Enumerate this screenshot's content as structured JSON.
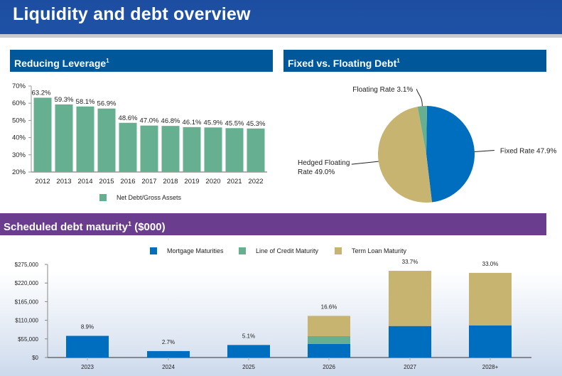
{
  "header": {
    "title": "Liquidity and debt overview"
  },
  "sections": {
    "leverage": {
      "title": "Reducing Leverage",
      "footnote": "1"
    },
    "fixed_floating": {
      "title": "Fixed vs. Floating Debt",
      "footnote": "1"
    },
    "maturity": {
      "title": "Scheduled debt maturity",
      "footnote": "1",
      "unit": "($000)"
    }
  },
  "colors": {
    "banner_blue": "#1E4FA3",
    "section_blue": "#00589A",
    "purple": "#6A3D8F",
    "green": "#66B091",
    "blue": "#006EBE",
    "tan": "#C6B470"
  },
  "chart_data": [
    {
      "id": "leverage",
      "type": "bar",
      "title": "Reducing Leverage",
      "categories": [
        "2012",
        "2013",
        "2014",
        "2015",
        "2016",
        "2017",
        "2018",
        "2019",
        "2020",
        "2021",
        "2022"
      ],
      "values": [
        63.2,
        59.3,
        58.1,
        56.9,
        48.6,
        47.0,
        46.8,
        46.1,
        45.9,
        45.5,
        45.3
      ],
      "data_labels": [
        "63.2%",
        "59.3%",
        "58.1%",
        "56.9%",
        "48.6%",
        "47.0%",
        "46.8%",
        "46.1%",
        "45.9%",
        "45.5%",
        "45.3%"
      ],
      "yticks": [
        "20%",
        "30%",
        "40%",
        "50%",
        "60%",
        "70%"
      ],
      "ylim": [
        20,
        70
      ],
      "xlabel": "",
      "ylabel": "",
      "legend": [
        {
          "name": "Net Debt/Gross Assets",
          "color": "#66B091"
        }
      ],
      "legend_position": "bottom",
      "grid": false
    },
    {
      "id": "fixed_floating",
      "type": "pie",
      "title": "Fixed vs. Floating Debt",
      "slices": [
        {
          "name": "Fixed Rate",
          "value": 47.9,
          "label": "Fixed Rate 47.9%",
          "color": "#006EBE"
        },
        {
          "name": "Hedged Floating Rate",
          "value": 49.0,
          "label_line1": "Hedged Floating",
          "label_line2": "Rate 49.0%",
          "color": "#C6B470"
        },
        {
          "name": "Floating Rate",
          "value": 3.1,
          "label": "Floating Rate 3.1%",
          "color": "#66B091"
        }
      ]
    },
    {
      "id": "maturity",
      "type": "bar",
      "stacked": true,
      "title": "Scheduled debt maturity ($000)",
      "categories": [
        "2023",
        "2024",
        "2025",
        "2026",
        "2027",
        "2028+"
      ],
      "series": [
        {
          "name": "Mortgage Maturities",
          "color": "#006EBE",
          "values": [
            64000,
            19000,
            37000,
            40000,
            93000,
            95000
          ]
        },
        {
          "name": "Line of Credit Maturity",
          "color": "#66B091",
          "values": [
            0,
            0,
            0,
            23000,
            0,
            0
          ]
        },
        {
          "name": "Term Loan Maturity",
          "color": "#C6B470",
          "values": [
            0,
            0,
            0,
            60000,
            163000,
            155000
          ]
        }
      ],
      "data_labels": [
        "8.9%",
        "2.7%",
        "5.1%",
        "16.6%",
        "33.7%",
        "33.0%"
      ],
      "yticks": [
        "$0",
        "$55,000",
        "$110,000",
        "$165,000",
        "$220,000",
        "$275,000"
      ],
      "ytick_values": [
        0,
        55000,
        110000,
        165000,
        220000,
        275000
      ],
      "ylim": [
        0,
        275000
      ],
      "xlabel": "",
      "ylabel": "",
      "legend_position": "top",
      "grid": false
    }
  ]
}
